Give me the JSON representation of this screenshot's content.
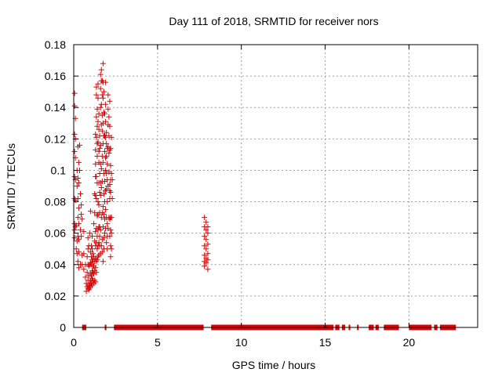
{
  "chart_data": {
    "type": "scatter",
    "title": "Day 111 of 2018, SRMTID for receiver nors",
    "xlabel": "GPS time / hours",
    "ylabel": "SRMTID / TECUs",
    "xlim": [
      0,
      24.1
    ],
    "ylim": [
      0,
      0.18
    ],
    "x_ticks": [
      0,
      5,
      10,
      15,
      20
    ],
    "x_tick_labels": [
      "0",
      "5",
      "10",
      "15",
      "20"
    ],
    "y_ticks": [
      0,
      0.02,
      0.04,
      0.06,
      0.08,
      0.1,
      0.12,
      0.14,
      0.16,
      0.18
    ],
    "y_tick_labels": [
      "0",
      "0.02",
      "0.04",
      "0.06",
      "0.08",
      "0.1",
      "0.12",
      "0.14",
      "0.16",
      "0.18"
    ],
    "grid": true,
    "marker": "+",
    "color": "#e00000",
    "series": [
      {
        "points": [
          [
            0.05,
            0.149
          ],
          [
            0.05,
            0.141
          ],
          [
            0.05,
            0.123
          ],
          [
            0.05,
            0.112
          ],
          [
            0.05,
            0.096
          ],
          [
            0.05,
            0.082
          ],
          [
            0.05,
            0.066
          ],
          [
            0.05,
            0.062
          ],
          [
            0.05,
            0.057
          ],
          [
            0.1,
            0.133
          ],
          [
            0.1,
            0.12
          ],
          [
            0.1,
            0.108
          ],
          [
            0.1,
            0.094
          ],
          [
            0.1,
            0.081
          ],
          [
            0.1,
            0.064
          ],
          [
            0.15,
            0.05
          ],
          [
            0.15,
            0.065
          ],
          [
            0.2,
            0.09
          ],
          [
            0.2,
            0.1
          ],
          [
            0.2,
            0.055
          ],
          [
            0.2,
            0.047
          ],
          [
            0.25,
            0.115
          ],
          [
            0.25,
            0.095
          ],
          [
            0.25,
            0.082
          ],
          [
            0.25,
            0.07
          ],
          [
            0.25,
            0.058
          ],
          [
            0.25,
            0.042
          ],
          [
            0.3,
            0.105
          ],
          [
            0.3,
            0.092
          ],
          [
            0.3,
            0.076
          ],
          [
            0.3,
            0.066
          ],
          [
            0.3,
            0.056
          ],
          [
            0.3,
            0.048
          ],
          [
            0.3,
            0.038
          ],
          [
            0.35,
            0.1
          ],
          [
            0.35,
            0.116
          ],
          [
            0.4,
            0.085
          ],
          [
            0.4,
            0.062
          ],
          [
            0.4,
            0.04
          ],
          [
            0.45,
            0.078
          ],
          [
            0.45,
            0.072
          ],
          [
            0.45,
            0.058
          ],
          [
            0.5,
            0.069
          ],
          [
            0.5,
            0.046
          ],
          [
            0.5,
            0.04
          ],
          [
            0.6,
            0.061
          ],
          [
            0.6,
            0.047
          ],
          [
            0.6,
            0.037
          ],
          [
            0.7,
            0.032
          ],
          [
            0.7,
            0.04
          ],
          [
            0.75,
            0.028
          ],
          [
            0.75,
            0.023
          ],
          [
            0.8,
            0.026
          ],
          [
            0.8,
            0.035
          ],
          [
            0.8,
            0.045
          ],
          [
            0.85,
            0.025
          ],
          [
            0.85,
            0.03
          ],
          [
            0.85,
            0.04
          ],
          [
            0.85,
            0.05
          ],
          [
            0.85,
            0.057
          ],
          [
            0.9,
            0.024
          ],
          [
            0.9,
            0.027
          ],
          [
            0.9,
            0.033
          ],
          [
            0.9,
            0.039
          ],
          [
            0.9,
            0.052
          ],
          [
            0.95,
            0.025
          ],
          [
            0.95,
            0.028
          ],
          [
            0.95,
            0.04
          ],
          [
            0.95,
            0.06
          ],
          [
            1.0,
            0.026
          ],
          [
            1.0,
            0.03
          ],
          [
            1.0,
            0.034
          ],
          [
            1.0,
            0.041
          ],
          [
            1.0,
            0.048
          ],
          [
            1.0,
            0.074
          ],
          [
            1.05,
            0.028
          ],
          [
            1.05,
            0.033
          ],
          [
            1.05,
            0.04
          ],
          [
            1.05,
            0.045
          ],
          [
            1.05,
            0.052
          ],
          [
            1.1,
            0.027
          ],
          [
            1.1,
            0.031
          ],
          [
            1.1,
            0.036
          ],
          [
            1.1,
            0.043
          ],
          [
            1.1,
            0.05
          ],
          [
            1.1,
            0.058
          ],
          [
            1.15,
            0.03
          ],
          [
            1.15,
            0.035
          ],
          [
            1.15,
            0.039
          ],
          [
            1.15,
            0.047
          ],
          [
            1.15,
            0.042
          ],
          [
            1.2,
            0.028
          ],
          [
            1.2,
            0.034
          ],
          [
            1.2,
            0.039
          ],
          [
            1.2,
            0.045
          ],
          [
            1.2,
            0.066
          ],
          [
            1.25,
            0.03
          ],
          [
            1.25,
            0.036
          ],
          [
            1.25,
            0.042
          ],
          [
            1.25,
            0.055
          ],
          [
            1.25,
            0.073
          ],
          [
            1.25,
            0.085
          ],
          [
            1.3,
            0.029
          ],
          [
            1.3,
            0.038
          ],
          [
            1.3,
            0.044
          ],
          [
            1.3,
            0.052
          ],
          [
            1.3,
            0.061
          ],
          [
            1.3,
            0.084
          ],
          [
            1.3,
            0.096
          ],
          [
            1.3,
            0.104
          ],
          [
            1.3,
            0.113
          ],
          [
            1.3,
            0.123
          ],
          [
            1.35,
            0.035
          ],
          [
            1.35,
            0.042
          ],
          [
            1.35,
            0.054
          ],
          [
            1.35,
            0.063
          ],
          [
            1.35,
            0.082
          ],
          [
            1.35,
            0.096
          ],
          [
            1.35,
            0.121
          ],
          [
            1.35,
            0.134
          ],
          [
            1.35,
            0.148
          ],
          [
            1.35,
            0.153
          ],
          [
            1.4,
            0.043
          ],
          [
            1.4,
            0.05
          ],
          [
            1.4,
            0.058
          ],
          [
            1.4,
            0.071
          ],
          [
            1.4,
            0.092
          ],
          [
            1.4,
            0.109
          ],
          [
            1.4,
            0.117
          ],
          [
            1.4,
            0.128
          ],
          [
            1.4,
            0.139
          ],
          [
            1.45,
            0.045
          ],
          [
            1.45,
            0.052
          ],
          [
            1.45,
            0.062
          ],
          [
            1.45,
            0.072
          ],
          [
            1.45,
            0.08
          ],
          [
            1.45,
            0.118
          ],
          [
            1.45,
            0.131
          ],
          [
            1.45,
            0.146
          ],
          [
            1.45,
            0.155
          ],
          [
            1.5,
            0.046
          ],
          [
            1.5,
            0.054
          ],
          [
            1.5,
            0.064
          ],
          [
            1.5,
            0.078
          ],
          [
            1.5,
            0.092
          ],
          [
            1.5,
            0.105
          ],
          [
            1.5,
            0.112
          ],
          [
            1.5,
            0.126
          ],
          [
            1.5,
            0.136
          ],
          [
            1.55,
            0.052
          ],
          [
            1.55,
            0.058
          ],
          [
            1.55,
            0.064
          ],
          [
            1.55,
            0.073
          ],
          [
            1.55,
            0.086
          ],
          [
            1.55,
            0.098
          ],
          [
            1.55,
            0.114
          ],
          [
            1.55,
            0.122
          ],
          [
            1.6,
            0.047
          ],
          [
            1.6,
            0.062
          ],
          [
            1.6,
            0.084
          ],
          [
            1.6,
            0.092
          ],
          [
            1.6,
            0.104
          ],
          [
            1.6,
            0.116
          ],
          [
            1.6,
            0.14
          ],
          [
            1.6,
            0.152
          ],
          [
            1.6,
            0.161
          ],
          [
            1.65,
            0.052
          ],
          [
            1.65,
            0.07
          ],
          [
            1.65,
            0.089
          ],
          [
            1.65,
            0.101
          ],
          [
            1.65,
            0.129
          ],
          [
            1.65,
            0.142
          ],
          [
            1.65,
            0.157
          ],
          [
            1.65,
            0.164
          ],
          [
            1.7,
            0.048
          ],
          [
            1.7,
            0.056
          ],
          [
            1.7,
            0.073
          ],
          [
            1.7,
            0.093
          ],
          [
            1.7,
            0.109
          ],
          [
            1.7,
            0.125
          ],
          [
            1.7,
            0.135
          ],
          [
            1.7,
            0.148
          ],
          [
            1.7,
            0.157
          ],
          [
            1.75,
            0.042
          ],
          [
            1.75,
            0.064
          ],
          [
            1.75,
            0.077
          ],
          [
            1.75,
            0.105
          ],
          [
            1.75,
            0.117
          ],
          [
            1.75,
            0.13
          ],
          [
            1.75,
            0.146
          ],
          [
            1.75,
            0.156
          ],
          [
            1.75,
            0.168
          ],
          [
            1.8,
            0.05
          ],
          [
            1.8,
            0.057
          ],
          [
            1.8,
            0.072
          ],
          [
            1.8,
            0.085
          ],
          [
            1.8,
            0.098
          ],
          [
            1.8,
            0.122
          ],
          [
            1.8,
            0.137
          ],
          [
            1.8,
            0.15
          ],
          [
            1.85,
            0.06
          ],
          [
            1.85,
            0.069
          ],
          [
            1.85,
            0.08
          ],
          [
            1.85,
            0.093
          ],
          [
            1.85,
            0.112
          ],
          [
            1.85,
            0.122
          ],
          [
            1.85,
            0.136
          ],
          [
            1.9,
            0.063
          ],
          [
            1.9,
            0.075
          ],
          [
            1.9,
            0.087
          ],
          [
            1.9,
            0.1
          ],
          [
            1.9,
            0.108
          ],
          [
            1.9,
            0.121
          ],
          [
            1.9,
            0.131
          ],
          [
            1.9,
            0.142
          ],
          [
            1.9,
            0.156
          ],
          [
            1.95,
            0.054
          ],
          [
            1.95,
            0.07
          ],
          [
            1.95,
            0.088
          ],
          [
            1.95,
            0.098
          ],
          [
            1.95,
            0.109
          ],
          [
            1.95,
            0.117
          ],
          [
            1.95,
            0.124
          ],
          [
            2.0,
            0.05
          ],
          [
            2.0,
            0.058
          ],
          [
            2.0,
            0.066
          ],
          [
            2.0,
            0.08
          ],
          [
            2.0,
            0.094
          ],
          [
            2.0,
            0.104
          ],
          [
            2.0,
            0.114
          ],
          [
            2.05,
            0.063
          ],
          [
            2.05,
            0.09
          ],
          [
            2.05,
            0.115
          ],
          [
            2.05,
            0.129
          ],
          [
            2.05,
            0.139
          ],
          [
            2.05,
            0.148
          ],
          [
            2.1,
            0.07
          ],
          [
            2.1,
            0.099
          ],
          [
            2.1,
            0.111
          ],
          [
            2.1,
            0.122
          ],
          [
            2.1,
            0.134
          ],
          [
            2.15,
            0.058
          ],
          [
            2.15,
            0.069
          ],
          [
            2.15,
            0.082
          ],
          [
            2.15,
            0.087
          ],
          [
            2.15,
            0.091
          ],
          [
            2.15,
            0.113
          ],
          [
            2.15,
            0.128
          ],
          [
            2.15,
            0.144
          ],
          [
            2.2,
            0.045
          ],
          [
            2.2,
            0.052
          ],
          [
            2.2,
            0.062
          ],
          [
            2.2,
            0.07
          ],
          [
            2.2,
            0.086
          ],
          [
            2.2,
            0.094
          ],
          [
            2.2,
            0.103
          ],
          [
            2.2,
            0.114
          ],
          [
            2.25,
            0.05
          ],
          [
            2.25,
            0.06
          ],
          [
            2.25,
            0.07
          ],
          [
            2.25,
            0.098
          ],
          [
            2.25,
            0.121
          ],
          [
            2.3,
            0.082
          ],
          [
            2.3,
            0.094
          ],
          [
            7.8,
            0.07
          ],
          [
            7.8,
            0.064
          ],
          [
            7.8,
            0.058
          ],
          [
            7.8,
            0.052
          ],
          [
            7.8,
            0.046
          ],
          [
            7.8,
            0.042
          ],
          [
            7.8,
            0.039
          ],
          [
            7.9,
            0.067
          ],
          [
            7.9,
            0.062
          ],
          [
            7.9,
            0.056
          ],
          [
            7.9,
            0.05
          ],
          [
            7.9,
            0.044
          ],
          [
            7.9,
            0.041
          ],
          [
            8.0,
            0.064
          ],
          [
            8.0,
            0.06
          ],
          [
            8.0,
            0.053
          ],
          [
            8.0,
            0.047
          ],
          [
            8.0,
            0.043
          ],
          [
            8.0,
            0.037
          ]
        ],
        "zero_segments": [
          [
            0.5,
            0.75
          ],
          [
            1.85,
            1.95
          ],
          [
            2.4,
            7.75
          ],
          [
            8.2,
            15.5
          ],
          [
            15.6,
            15.85
          ],
          [
            16.0,
            16.2
          ],
          [
            16.4,
            16.5
          ],
          [
            16.9,
            17.0
          ],
          [
            17.6,
            17.9
          ],
          [
            18.0,
            18.2
          ],
          [
            18.5,
            19.4
          ],
          [
            20.0,
            21.35
          ],
          [
            21.5,
            21.7
          ],
          [
            21.85,
            22.8
          ]
        ]
      }
    ]
  }
}
